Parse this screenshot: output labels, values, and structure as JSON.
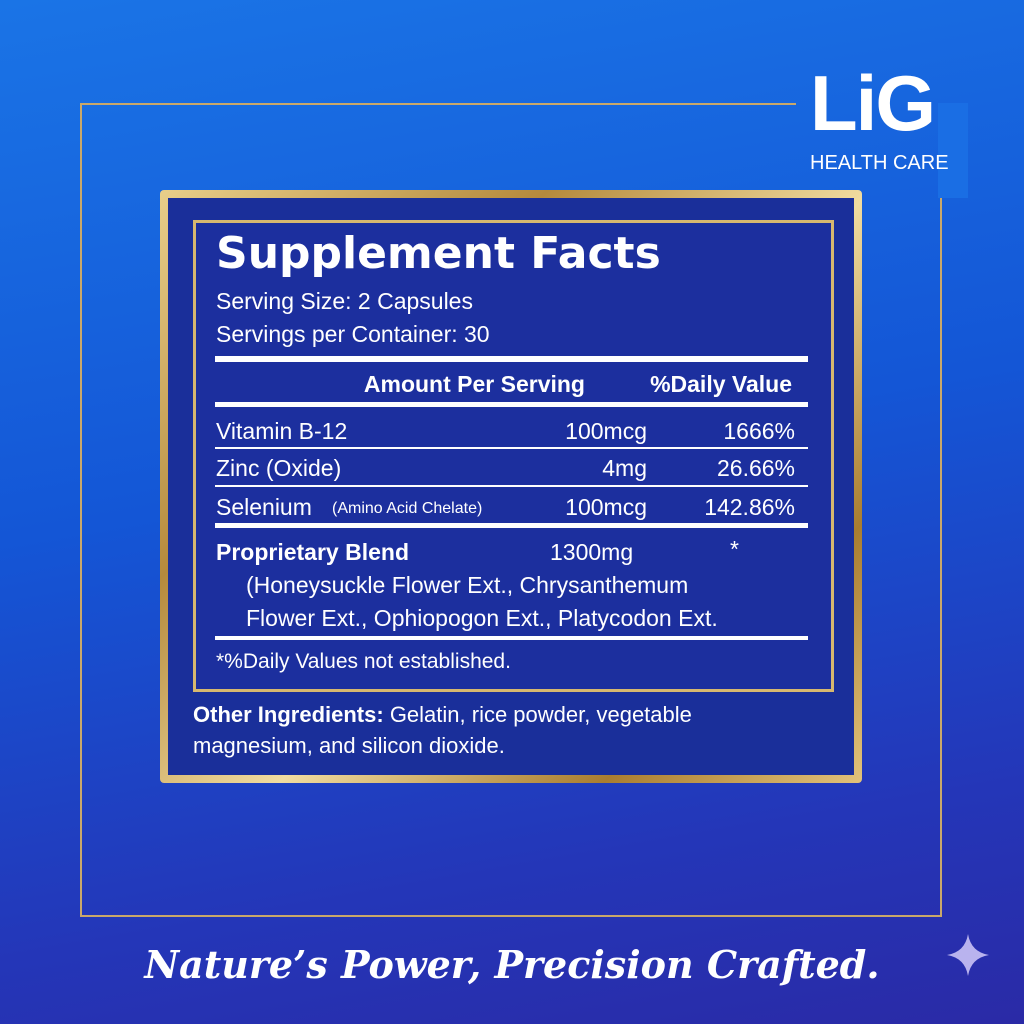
{
  "brand": {
    "logo": "LiG",
    "subtitle": "HEALTH CARE"
  },
  "facts": {
    "title": "Supplement Facts",
    "serving_size": "Serving Size: 2 Capsules",
    "servings_per_container": "Servings per Container: 30",
    "header": {
      "amount": "Amount Per Serving",
      "daily_value": "%Daily Value"
    },
    "rows": [
      {
        "name": "Vitamin B-12",
        "amount": "100mcg",
        "daily_value": "1666%"
      },
      {
        "name": "Zinc (Oxide)",
        "amount": "4mg",
        "daily_value": "26.66%"
      },
      {
        "name": "Selenium",
        "note": "(Amino Acid Chelate)",
        "amount": "100mcg",
        "daily_value": "142.86%"
      }
    ],
    "blend": {
      "name": "Proprietary Blend",
      "amount": "1300mg",
      "daily_value": "*",
      "lines": [
        "(Honeysuckle Flower Ext., Chrysanthemum",
        "Flower Ext., Ophiopogon Ext., Platycodon Ext."
      ]
    },
    "footnote": "*%Daily Values not established."
  },
  "other_ingredients": {
    "label": "Other Ingredients:",
    "lines": [
      "Gelatin, rice powder, vegetable",
      "magnesium, and silicon dioxide."
    ]
  },
  "tagline": "Nature’s Power, Precision Crafted."
}
